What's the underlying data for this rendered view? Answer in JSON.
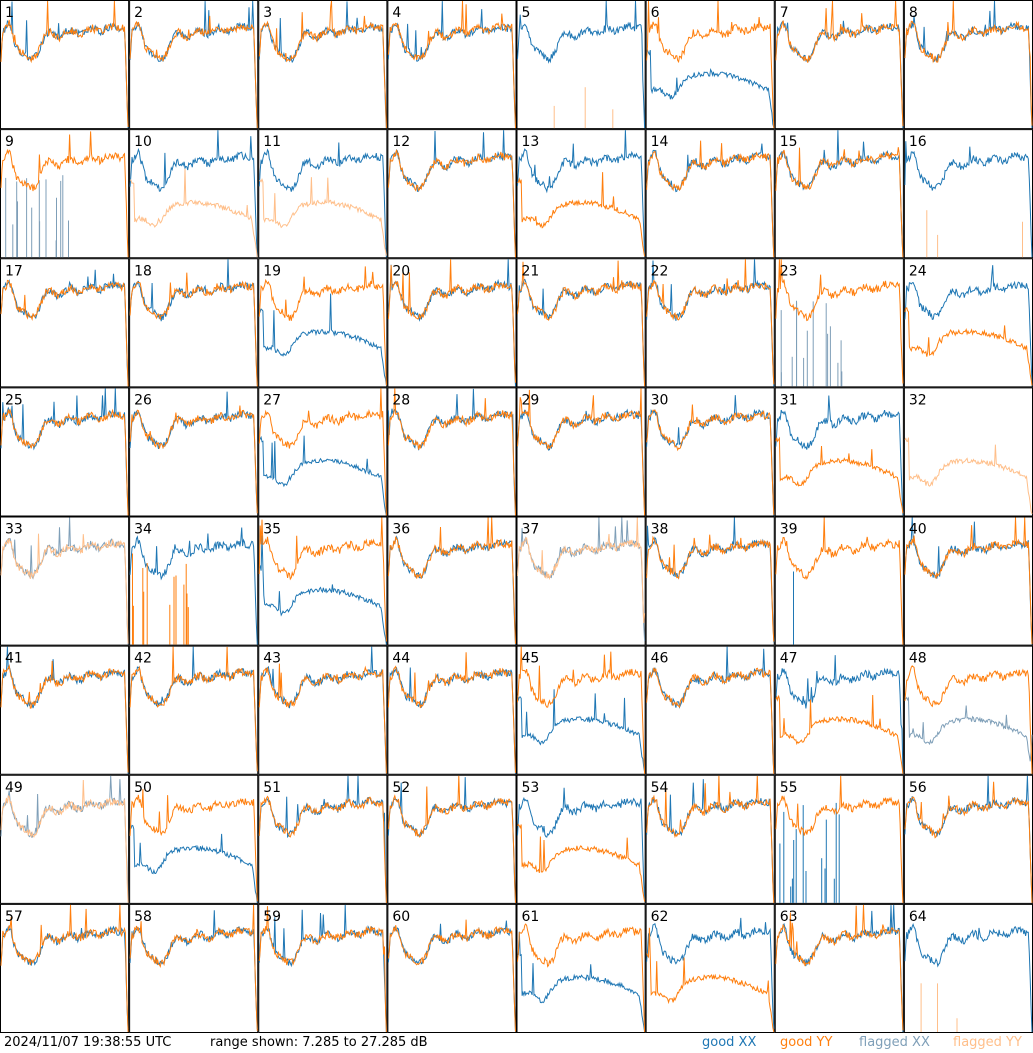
{
  "chart_data": {
    "type": "line",
    "title": "",
    "xlabel": "",
    "ylabel": "",
    "ylim": [
      7.285,
      27.285
    ],
    "grid_layout": "8x8",
    "panels": [
      {
        "label": "1",
        "profile": "normal",
        "tags": [
          "XX",
          "YY"
        ]
      },
      {
        "label": "2",
        "profile": "normal",
        "tags": [
          "XX",
          "YY"
        ]
      },
      {
        "label": "3",
        "profile": "normal",
        "tags": [
          "XX",
          "YY"
        ]
      },
      {
        "label": "4",
        "profile": "normal",
        "tags": [
          "XX",
          "YY"
        ]
      },
      {
        "label": "5",
        "profile": "yy-flagged-spikes",
        "tags": [
          "XX",
          "flagged YY"
        ]
      },
      {
        "label": "6",
        "profile": "xx-low",
        "tags": [
          "XX",
          "YY"
        ]
      },
      {
        "label": "7",
        "profile": "normal",
        "tags": [
          "XX",
          "YY"
        ]
      },
      {
        "label": "8",
        "profile": "normal",
        "tags": [
          "XX",
          "YY"
        ]
      },
      {
        "label": "9",
        "profile": "xx-flagged-spikes",
        "tags": [
          "flagged XX",
          "YY"
        ]
      },
      {
        "label": "10",
        "profile": "yy-flagged-low",
        "tags": [
          "XX",
          "flagged YY"
        ]
      },
      {
        "label": "11",
        "profile": "yy-flagged-low",
        "tags": [
          "XX",
          "flagged YY"
        ]
      },
      {
        "label": "12",
        "profile": "normal",
        "tags": [
          "XX",
          "YY"
        ]
      },
      {
        "label": "13",
        "profile": "yy-low",
        "tags": [
          "XX",
          "YY"
        ]
      },
      {
        "label": "14",
        "profile": "normal",
        "tags": [
          "XX",
          "YY"
        ]
      },
      {
        "label": "15",
        "profile": "normal",
        "tags": [
          "XX",
          "YY"
        ]
      },
      {
        "label": "16",
        "profile": "yy-flagged-spikes",
        "tags": [
          "XX",
          "flagged YY"
        ]
      },
      {
        "label": "17",
        "profile": "normal",
        "tags": [
          "XX",
          "YY"
        ]
      },
      {
        "label": "18",
        "profile": "normal",
        "tags": [
          "XX",
          "YY"
        ]
      },
      {
        "label": "19",
        "profile": "xx-low",
        "tags": [
          "XX",
          "YY"
        ]
      },
      {
        "label": "20",
        "profile": "normal",
        "tags": [
          "XX",
          "YY"
        ]
      },
      {
        "label": "21",
        "profile": "normal",
        "tags": [
          "XX",
          "YY"
        ]
      },
      {
        "label": "22",
        "profile": "normal",
        "tags": [
          "XX",
          "YY"
        ]
      },
      {
        "label": "23",
        "profile": "xx-flagged-spikes",
        "tags": [
          "flagged XX",
          "YY"
        ]
      },
      {
        "label": "24",
        "profile": "yy-low",
        "tags": [
          "XX",
          "YY"
        ]
      },
      {
        "label": "25",
        "profile": "normal",
        "tags": [
          "XX",
          "YY"
        ]
      },
      {
        "label": "26",
        "profile": "normal",
        "tags": [
          "XX",
          "YY"
        ]
      },
      {
        "label": "27",
        "profile": "xx-dip",
        "tags": [
          "XX",
          "YY"
        ]
      },
      {
        "label": "28",
        "profile": "normal",
        "tags": [
          "XX",
          "YY"
        ]
      },
      {
        "label": "29",
        "profile": "normal",
        "tags": [
          "XX",
          "YY"
        ]
      },
      {
        "label": "30",
        "profile": "normal",
        "tags": [
          "XX",
          "YY"
        ]
      },
      {
        "label": "31",
        "profile": "yy-low",
        "tags": [
          "XX",
          "YY"
        ]
      },
      {
        "label": "32",
        "profile": "yy-flagged-only",
        "tags": [
          "flagged YY"
        ]
      },
      {
        "label": "33",
        "profile": "both-flagged",
        "tags": [
          "flagged XX",
          "flagged YY"
        ]
      },
      {
        "label": "34",
        "profile": "yy-spikes",
        "tags": [
          "XX",
          "YY"
        ]
      },
      {
        "label": "35",
        "profile": "xx-low",
        "tags": [
          "XX",
          "YY"
        ]
      },
      {
        "label": "36",
        "profile": "normal",
        "tags": [
          "XX",
          "YY"
        ]
      },
      {
        "label": "37",
        "profile": "both-flagged",
        "tags": [
          "flagged XX",
          "flagged YY"
        ]
      },
      {
        "label": "38",
        "profile": "normal",
        "tags": [
          "XX",
          "YY"
        ]
      },
      {
        "label": "39",
        "profile": "xx-spike",
        "tags": [
          "XX",
          "YY"
        ]
      },
      {
        "label": "40",
        "profile": "normal",
        "tags": [
          "XX",
          "YY"
        ]
      },
      {
        "label": "41",
        "profile": "normal",
        "tags": [
          "XX",
          "YY"
        ]
      },
      {
        "label": "42",
        "profile": "normal",
        "tags": [
          "XX",
          "YY"
        ]
      },
      {
        "label": "43",
        "profile": "normal",
        "tags": [
          "XX",
          "YY"
        ]
      },
      {
        "label": "44",
        "profile": "normal",
        "tags": [
          "XX",
          "YY"
        ]
      },
      {
        "label": "45",
        "profile": "xx-low",
        "tags": [
          "XX",
          "YY"
        ]
      },
      {
        "label": "46",
        "profile": "normal",
        "tags": [
          "XX",
          "YY"
        ]
      },
      {
        "label": "47",
        "profile": "yy-low",
        "tags": [
          "XX",
          "YY"
        ]
      },
      {
        "label": "48",
        "profile": "xx-flagged-low",
        "tags": [
          "flagged XX",
          "YY"
        ]
      },
      {
        "label": "49",
        "profile": "both-flagged",
        "tags": [
          "flagged XX",
          "flagged YY"
        ]
      },
      {
        "label": "50",
        "profile": "xx-low",
        "tags": [
          "XX",
          "YY"
        ]
      },
      {
        "label": "51",
        "profile": "normal",
        "tags": [
          "XX",
          "YY"
        ]
      },
      {
        "label": "52",
        "profile": "normal",
        "tags": [
          "XX",
          "YY"
        ]
      },
      {
        "label": "53",
        "profile": "yy-low",
        "tags": [
          "XX",
          "YY"
        ]
      },
      {
        "label": "54",
        "profile": "normal",
        "tags": [
          "XX",
          "YY"
        ]
      },
      {
        "label": "55",
        "profile": "xx-spikes",
        "tags": [
          "XX",
          "YY"
        ]
      },
      {
        "label": "56",
        "profile": "normal",
        "tags": [
          "XX",
          "YY"
        ]
      },
      {
        "label": "57",
        "profile": "normal",
        "tags": [
          "XX",
          "YY"
        ]
      },
      {
        "label": "58",
        "profile": "normal",
        "tags": [
          "XX",
          "YY"
        ]
      },
      {
        "label": "59",
        "profile": "normal",
        "tags": [
          "XX",
          "YY"
        ]
      },
      {
        "label": "60",
        "profile": "normal",
        "tags": [
          "XX",
          "YY"
        ]
      },
      {
        "label": "61",
        "profile": "xx-low",
        "tags": [
          "XX",
          "YY"
        ]
      },
      {
        "label": "62",
        "profile": "yy-low",
        "tags": [
          "XX",
          "YY"
        ]
      },
      {
        "label": "63",
        "profile": "normal",
        "tags": [
          "XX",
          "YY"
        ]
      },
      {
        "label": "64",
        "profile": "yy-flagged-spikes",
        "tags": [
          "XX",
          "flagged YY"
        ]
      }
    ]
  },
  "footer": {
    "timestamp": "2024/11/07 19:38:55 UTC",
    "range": "range shown: 7.285 to 27.285 dB",
    "legend": [
      {
        "label": "good XX",
        "color": "#1f77b4"
      },
      {
        "label": "good YY",
        "color": "#ff7f0e"
      },
      {
        "label": "flagged XX",
        "color": "#7f9fb8"
      },
      {
        "label": "flagged YY",
        "color": "#ffbf8a"
      }
    ]
  }
}
